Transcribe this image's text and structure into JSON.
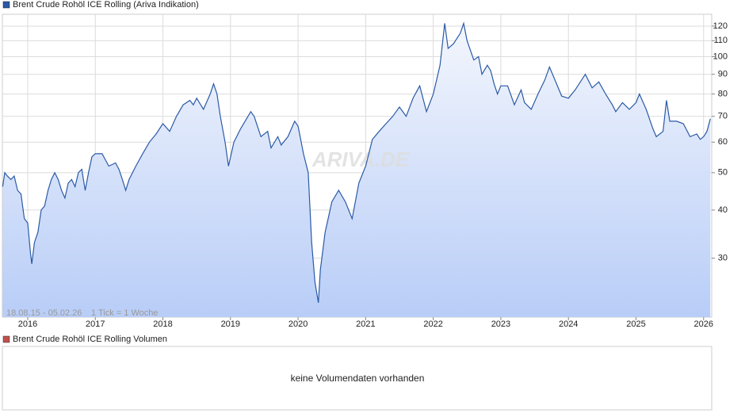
{
  "chart_data": {
    "type": "line",
    "title": "Brent Crude Rohöl ICE Rolling (Ariva Indikation)",
    "range_note": "18.08.15 - 05.02.26",
    "tick_note": "1 Tick = 1 Woche",
    "watermark": "ARIVA.DE",
    "log_scale": true,
    "grid": true,
    "xlim": [
      2015.625,
      2026.12
    ],
    "xticks": [
      2016,
      2017,
      2018,
      2019,
      2020,
      2021,
      2022,
      2023,
      2024,
      2025,
      2026
    ],
    "ylim": [
      21.1,
      128.8
    ],
    "yticks": [
      30,
      40,
      50,
      60,
      70,
      80,
      90,
      100,
      110,
      120
    ],
    "x": [
      2015.63,
      2015.66,
      2015.7,
      2015.75,
      2015.8,
      2015.85,
      2015.9,
      2015.95,
      2016.0,
      2016.04,
      2016.06,
      2016.1,
      2016.15,
      2016.2,
      2016.25,
      2016.3,
      2016.35,
      2016.4,
      2016.45,
      2016.5,
      2016.55,
      2016.6,
      2016.65,
      2016.7,
      2016.75,
      2016.8,
      2016.85,
      2016.9,
      2016.95,
      2017.0,
      2017.1,
      2017.2,
      2017.3,
      2017.35,
      2017.4,
      2017.45,
      2017.5,
      2017.6,
      2017.7,
      2017.8,
      2017.9,
      2018.0,
      2018.1,
      2018.2,
      2018.3,
      2018.4,
      2018.45,
      2018.5,
      2018.6,
      2018.7,
      2018.75,
      2018.8,
      2018.85,
      2018.92,
      2018.97,
      2019.05,
      2019.15,
      2019.3,
      2019.35,
      2019.45,
      2019.55,
      2019.6,
      2019.7,
      2019.75,
      2019.85,
      2019.95,
      2020.0,
      2020.08,
      2020.15,
      2020.2,
      2020.25,
      2020.3,
      2020.33,
      2020.4,
      2020.5,
      2020.6,
      2020.7,
      2020.8,
      2020.9,
      2021.0,
      2021.1,
      2021.2,
      2021.3,
      2021.4,
      2021.5,
      2021.6,
      2021.7,
      2021.8,
      2021.9,
      2022.0,
      2022.1,
      2022.17,
      2022.22,
      2022.3,
      2022.4,
      2022.45,
      2022.5,
      2022.6,
      2022.67,
      2022.72,
      2022.8,
      2022.85,
      2022.9,
      2022.95,
      2023.0,
      2023.1,
      2023.2,
      2023.3,
      2023.35,
      2023.45,
      2023.55,
      2023.65,
      2023.72,
      2023.8,
      2023.9,
      2024.0,
      2024.1,
      2024.25,
      2024.35,
      2024.45,
      2024.55,
      2024.65,
      2024.7,
      2024.8,
      2024.9,
      2025.0,
      2025.05,
      2025.15,
      2025.25,
      2025.3,
      2025.4,
      2025.45,
      2025.5,
      2025.6,
      2025.7,
      2025.8,
      2025.9,
      2025.95,
      2026.0,
      2026.05,
      2026.1
    ],
    "series": [
      {
        "name": "Brent Crude Rohöl ICE Rolling (Ariva Indikation)",
        "color": "#2b5aa6",
        "values": [
          46,
          50,
          49,
          48,
          49,
          45,
          44,
          38,
          37,
          31,
          29,
          33,
          35,
          40,
          41,
          45,
          48,
          50,
          48,
          45,
          43,
          47,
          48,
          46,
          50,
          51,
          45,
          50,
          55,
          56,
          56,
          52,
          53,
          51,
          48,
          45,
          48,
          52,
          56,
          60,
          63,
          67,
          64,
          70,
          75,
          77,
          75,
          78,
          73,
          80,
          85,
          80,
          70,
          60,
          52,
          60,
          65,
          72,
          70,
          62,
          64,
          58,
          62,
          59,
          62,
          68,
          66,
          56,
          50,
          33,
          26,
          23,
          28,
          35,
          42,
          45,
          42,
          38,
          47,
          52,
          61,
          64,
          67,
          70,
          74,
          70,
          78,
          84,
          72,
          80,
          95,
          122,
          105,
          108,
          115,
          122,
          110,
          98,
          100,
          90,
          95,
          92,
          85,
          80,
          84,
          84,
          75,
          82,
          76,
          73,
          80,
          87,
          94,
          87,
          79,
          78,
          82,
          90,
          83,
          86,
          80,
          75,
          72,
          76,
          73,
          76,
          80,
          73,
          65,
          62,
          64,
          77,
          68,
          68,
          67,
          62,
          63,
          61,
          62,
          64,
          69
        ]
      }
    ]
  },
  "volume_panel": {
    "title": "Brent Crude Rohöl ICE Rolling Volumen",
    "color": "#c0504d",
    "message": "keine Volumendaten vorhanden"
  }
}
